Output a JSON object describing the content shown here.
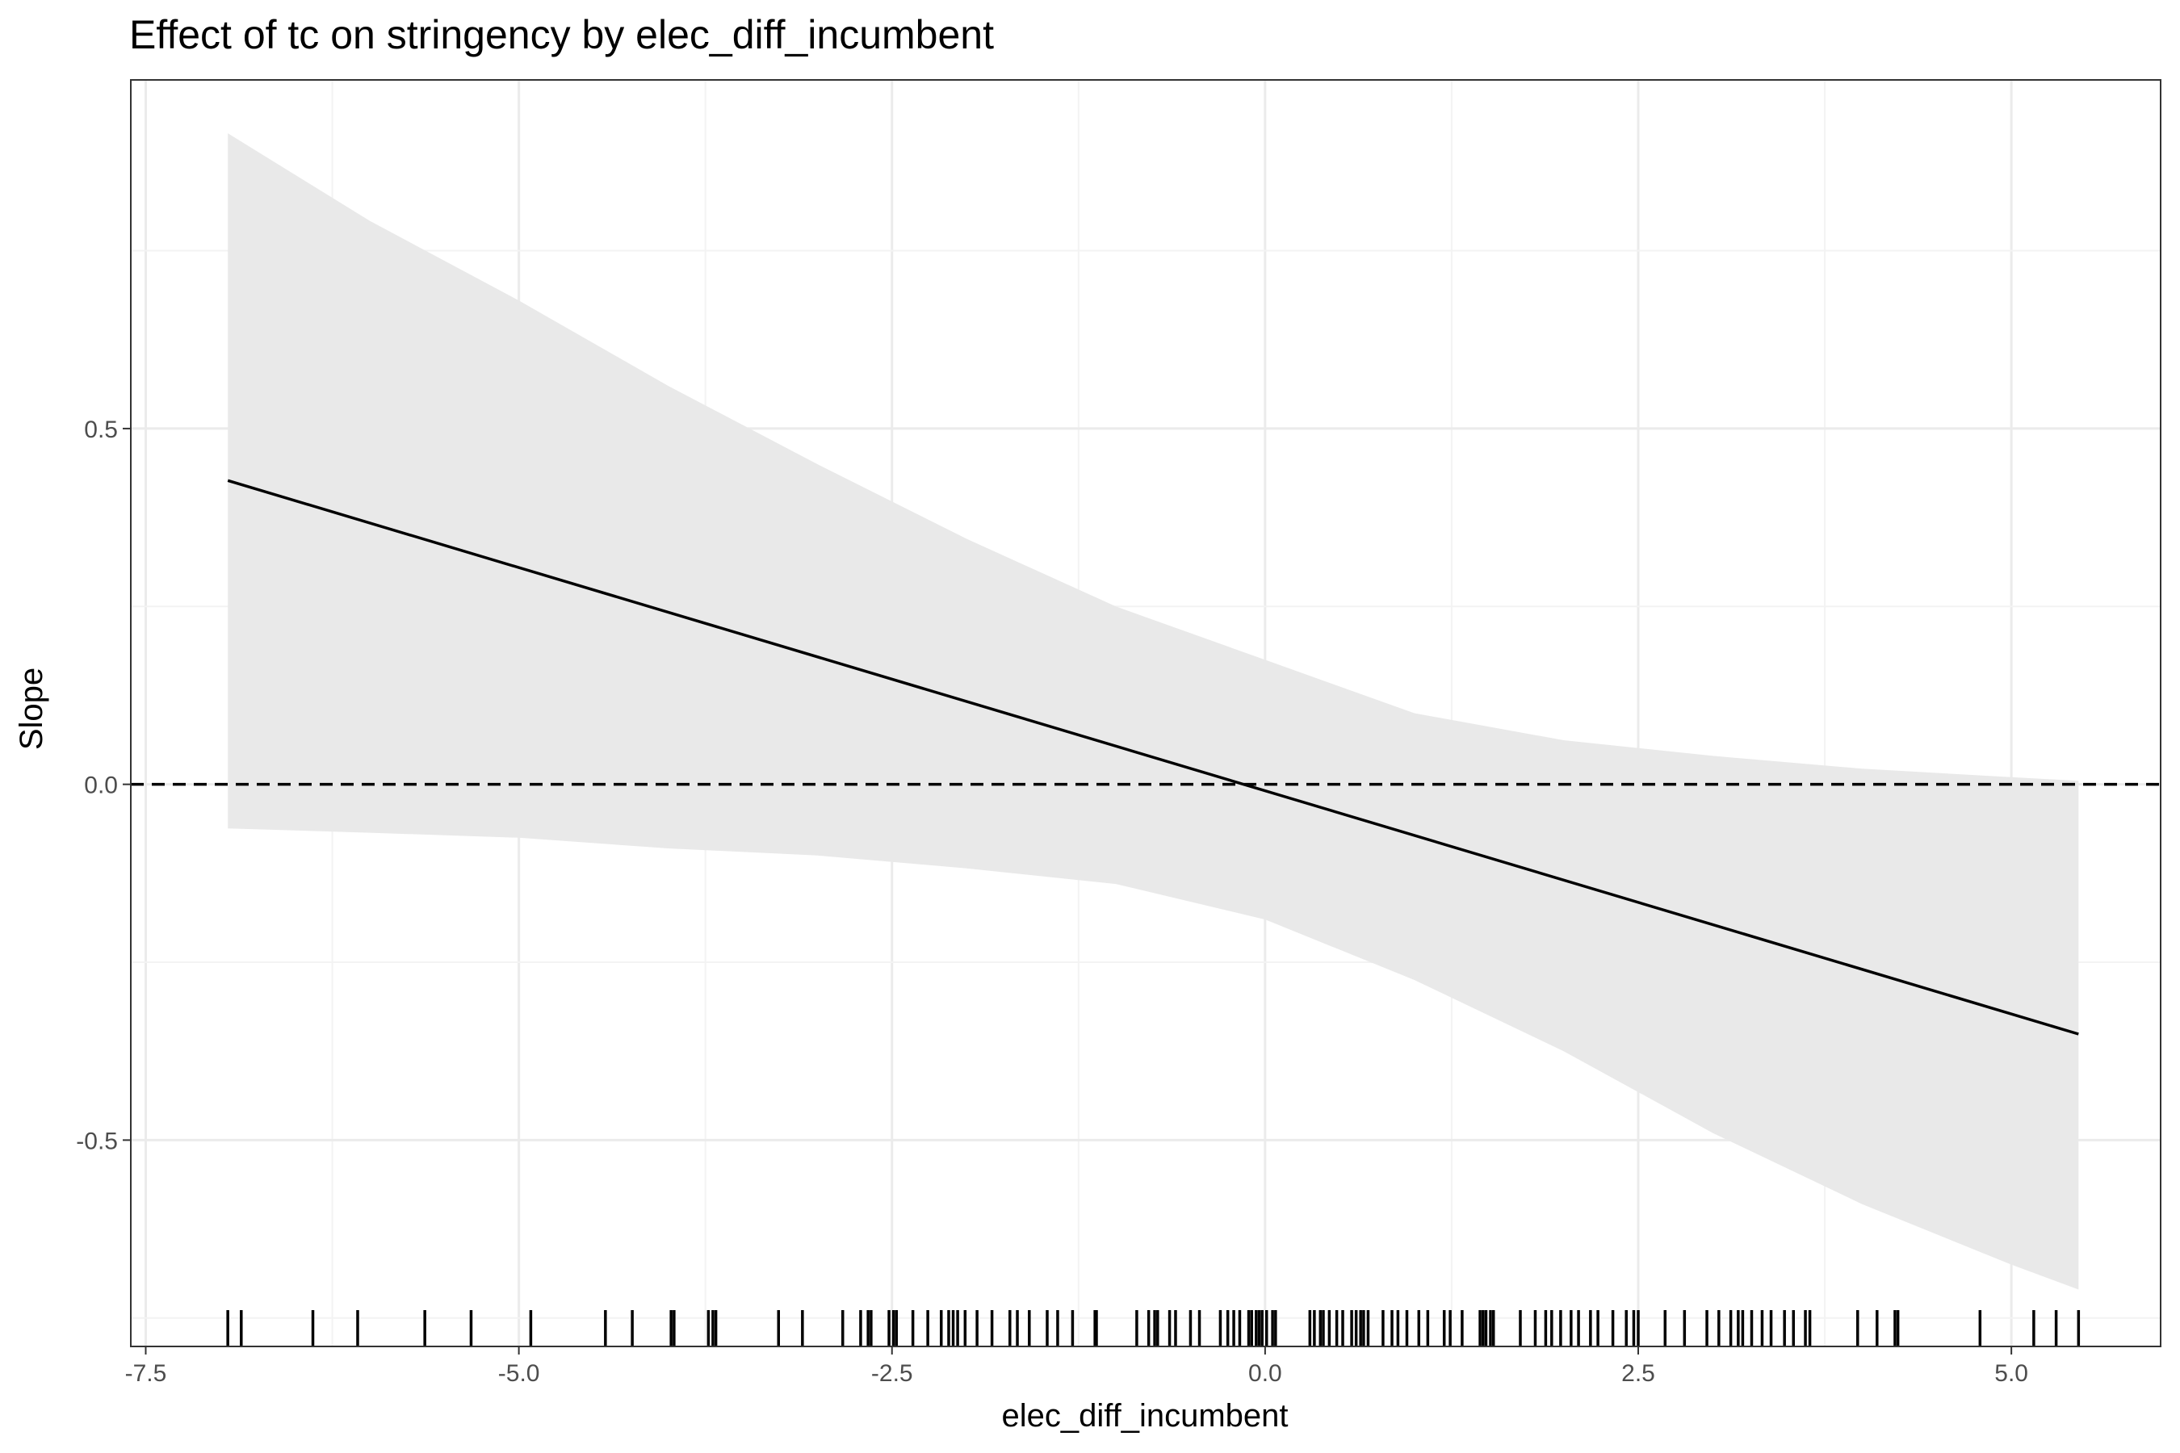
{
  "chart_data": {
    "type": "line",
    "title": "Effect of tc on stringency by elec_diff_incumbent",
    "xlabel": "elec_diff_incumbent",
    "ylabel": "Slope",
    "xlim": [
      -7.6,
      6.0
    ],
    "ylim": [
      -0.79,
      0.99
    ],
    "x_ticks": [
      -7.5,
      -5.0,
      -2.5,
      0.0,
      2.5,
      5.0
    ],
    "x_tick_labels": [
      "-7.5",
      "-5.0",
      "-2.5",
      "0.0",
      "2.5",
      "5.0"
    ],
    "y_ticks": [
      -0.5,
      0.0,
      0.5
    ],
    "y_tick_labels": [
      "-0.5",
      "0.0",
      "0.5"
    ],
    "grid": true,
    "reference_line": {
      "y": 0.0,
      "style": "dashed"
    },
    "series": [
      {
        "type": "line",
        "x": [
          -6.95,
          5.45
        ],
        "y": [
          0.427,
          -0.351
        ]
      }
    ],
    "confidence_band": {
      "x": [
        -6.95,
        -6.0,
        -5.0,
        -4.0,
        -3.0,
        -2.0,
        -1.0,
        0.0,
        1.0,
        2.0,
        3.0,
        4.0,
        5.0,
        5.45
      ],
      "upper": [
        0.915,
        0.792,
        0.68,
        0.56,
        0.45,
        0.345,
        0.25,
        0.175,
        0.1,
        0.062,
        0.04,
        0.022,
        0.01,
        0.005
      ],
      "lower": [
        -0.062,
        -0.068,
        -0.075,
        -0.09,
        -0.1,
        -0.118,
        -0.14,
        -0.19,
        -0.275,
        -0.375,
        -0.49,
        -0.59,
        -0.675,
        -0.71
      ]
    },
    "rug": [
      -6.95,
      -6.86,
      -6.38,
      -6.08,
      -5.63,
      -5.32,
      -4.92,
      -4.42,
      -4.24,
      -3.98,
      -3.96,
      -3.73,
      -3.7,
      -3.68,
      -3.26,
      -3.1,
      -2.83,
      -2.71,
      -2.66,
      -2.64,
      -2.52,
      -2.49,
      -2.47,
      -2.36,
      -2.26,
      -2.17,
      -2.12,
      -2.09,
      -2.06,
      -2.01,
      -1.93,
      -1.83,
      -1.71,
      -1.66,
      -1.58,
      -1.46,
      -1.39,
      -1.29,
      -1.14,
      -1.13,
      -0.86,
      -0.78,
      -0.74,
      -0.72,
      -0.64,
      -0.6,
      -0.5,
      -0.44,
      -0.3,
      -0.25,
      -0.21,
      -0.17,
      -0.11,
      -0.09,
      -0.06,
      -0.04,
      -0.02,
      0.01,
      0.05,
      0.07,
      0.3,
      0.33,
      0.37,
      0.39,
      0.43,
      0.48,
      0.52,
      0.58,
      0.61,
      0.64,
      0.66,
      0.69,
      0.79,
      0.85,
      0.89,
      0.95,
      1.03,
      1.09,
      1.2,
      1.24,
      1.32,
      1.44,
      1.46,
      1.48,
      1.51,
      1.53,
      1.71,
      1.81,
      1.88,
      1.92,
      1.98,
      2.05,
      2.1,
      2.18,
      2.23,
      2.33,
      2.42,
      2.47,
      2.5,
      2.68,
      2.81,
      2.96,
      3.04,
      3.12,
      3.17,
      3.2,
      3.26,
      3.33,
      3.39,
      3.48,
      3.54,
      3.62,
      3.65,
      3.97,
      4.1,
      4.22,
      4.24,
      4.79,
      5.15,
      5.3,
      5.45
    ]
  }
}
